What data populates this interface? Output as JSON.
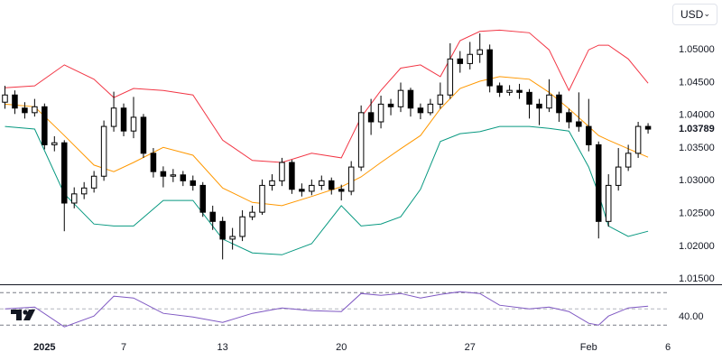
{
  "currency_button": "USD",
  "chart_data": {
    "type": "candlestick",
    "xlim": [
      -0.5,
      67
    ],
    "xticks": [
      {
        "value": 4,
        "label": "2025"
      },
      {
        "value": 12,
        "label": "7"
      },
      {
        "value": 22,
        "label": "13"
      },
      {
        "value": 34,
        "label": "20"
      },
      {
        "value": 47,
        "label": "27"
      },
      {
        "value": 59,
        "label": "Feb"
      },
      {
        "value": 67,
        "label": "6"
      }
    ],
    "ylim": [
      1.0142,
      1.0576
    ],
    "yticks": [
      {
        "value": 1.05,
        "label": "1.05000"
      },
      {
        "value": 1.045,
        "label": "1.04500"
      },
      {
        "value": 1.04,
        "label": "1.04000"
      },
      {
        "value": 1.035,
        "label": "1.03500"
      },
      {
        "value": 1.03,
        "label": "1.03000"
      },
      {
        "value": 1.025,
        "label": "1.02500"
      },
      {
        "value": 1.02,
        "label": "1.02000"
      },
      {
        "value": 1.015,
        "label": "1.01500"
      }
    ],
    "last_value_label": "1.03789",
    "up_color": "#ffffff",
    "down_color": "#000000",
    "open": [
      1.042,
      1.0431,
      1.0411,
      1.0404,
      1.0413,
      1.0355,
      1.0358,
      1.0266,
      1.028,
      1.0289,
      1.0307,
      1.0383,
      1.0411,
      1.0376,
      1.0397,
      1.0342,
      1.0314,
      1.0307,
      1.0309,
      1.03,
      1.0293,
      1.0252,
      1.0238,
      1.0211,
      1.0215,
      1.0245,
      1.0252,
      1.0293,
      1.03,
      1.0328,
      1.0287,
      1.0284,
      1.0293,
      1.03,
      1.0287,
      1.0284,
      1.0321,
      1.0404,
      1.039,
      1.0417,
      1.0413,
      1.0438,
      1.0411,
      1.0404,
      1.0417,
      1.0431,
      1.0486,
      1.0479,
      1.0493,
      1.05,
      1.0445,
      1.0435,
      1.0438,
      1.0435,
      1.0417,
      1.0411,
      1.0431,
      1.0404,
      1.039,
      1.0383,
      1.0355,
      1.0238,
      1.0293,
      1.0321,
      1.0342,
      1.0383
    ],
    "high": [
      1.0445,
      1.0438,
      1.042,
      1.0425,
      1.0418,
      1.0368,
      1.0362,
      1.029,
      1.0298,
      1.0315,
      1.0392,
      1.0436,
      1.0418,
      1.0428,
      1.0402,
      1.035,
      1.0322,
      1.0318,
      1.0315,
      1.0308,
      1.0298,
      1.0262,
      1.0245,
      1.0228,
      1.0255,
      1.0262,
      1.0302,
      1.031,
      1.0335,
      1.0332,
      1.0296,
      1.0302,
      1.0308,
      1.0305,
      1.0294,
      1.033,
      1.0415,
      1.0425,
      1.043,
      1.0425,
      1.045,
      1.0442,
      1.0418,
      1.0425,
      1.045,
      1.051,
      1.0498,
      1.0512,
      1.0525,
      1.0508,
      1.045,
      1.0446,
      1.0448,
      1.044,
      1.0425,
      1.0455,
      1.0436,
      1.041,
      1.0435,
      1.0425,
      1.036,
      1.031,
      1.035,
      1.0355,
      1.039,
      1.0388
    ],
    "low": [
      1.041,
      1.0402,
      1.0395,
      1.0398,
      1.0348,
      1.0345,
      1.0223,
      1.0258,
      1.0272,
      1.0282,
      1.03,
      1.0375,
      1.0368,
      1.0365,
      1.0335,
      1.0305,
      1.029,
      1.0298,
      1.0292,
      1.0285,
      1.0245,
      1.0225,
      1.018,
      1.0195,
      1.0208,
      1.024,
      1.0248,
      1.0285,
      1.0292,
      1.028,
      1.0276,
      1.0278,
      1.0286,
      1.0279,
      1.027,
      1.0278,
      1.0315,
      1.037,
      1.038,
      1.04,
      1.0405,
      1.0398,
      1.0394,
      1.04,
      1.041,
      1.0425,
      1.0465,
      1.047,
      1.048,
      1.0435,
      1.0428,
      1.043,
      1.0425,
      1.0395,
      1.0385,
      1.0405,
      1.039,
      1.038,
      1.0375,
      1.0345,
      1.0212,
      1.023,
      1.0285,
      1.0315,
      1.0335,
      1.0372
    ],
    "close": [
      1.0431,
      1.0411,
      1.0404,
      1.0413,
      1.0355,
      1.0358,
      1.0266,
      1.028,
      1.0289,
      1.0307,
      1.0383,
      1.0411,
      1.0376,
      1.0397,
      1.0342,
      1.0314,
      1.0307,
      1.0309,
      1.03,
      1.0293,
      1.0252,
      1.0238,
      1.0211,
      1.0215,
      1.0245,
      1.0252,
      1.0293,
      1.03,
      1.0328,
      1.0287,
      1.0284,
      1.0293,
      1.03,
      1.0287,
      1.0284,
      1.0321,
      1.0404,
      1.039,
      1.0417,
      1.0413,
      1.0438,
      1.0411,
      1.0404,
      1.0417,
      1.0431,
      1.0486,
      1.0479,
      1.0493,
      1.05,
      1.0445,
      1.0435,
      1.0438,
      1.0435,
      1.0417,
      1.0411,
      1.0431,
      1.0404,
      1.039,
      1.0383,
      1.0355,
      1.0238,
      1.0293,
      1.0321,
      1.0342,
      1.0383,
      1.03789
    ],
    "bands": {
      "x": [
        0,
        3,
        6,
        9,
        11,
        13,
        16,
        19,
        22,
        25,
        28,
        31,
        34,
        36,
        38,
        40,
        42,
        44,
        46,
        48,
        50,
        53,
        55,
        57,
        59,
        60,
        61,
        63,
        65
      ],
      "series": [
        {
          "color": "#f23645",
          "values": [
            1.0442,
            1.0445,
            1.0477,
            1.0455,
            1.0427,
            1.0441,
            1.0438,
            1.0431,
            1.0362,
            1.0331,
            1.0328,
            1.0342,
            1.0335,
            1.0397,
            1.0438,
            1.0472,
            1.0477,
            1.0459,
            1.0514,
            1.0528,
            1.053,
            1.0526,
            1.05,
            1.0438,
            1.05,
            1.0507,
            1.0507,
            1.0486,
            1.0449
          ]
        },
        {
          "color": "#ff9800",
          "values": [
            1.0417,
            1.0413,
            1.0369,
            1.0324,
            1.0314,
            1.0328,
            1.0351,
            1.0339,
            1.0289,
            1.0267,
            1.0262,
            1.0276,
            1.0291,
            1.0306,
            1.0328,
            1.0349,
            1.0369,
            1.041,
            1.0441,
            1.0452,
            1.0459,
            1.0455,
            1.0435,
            1.041,
            1.0383,
            1.0369,
            1.0362,
            1.0349,
            1.0336
          ]
        },
        {
          "color": "#089981",
          "values": [
            1.0383,
            1.0379,
            1.028,
            1.0234,
            1.0231,
            1.0231,
            1.027,
            1.027,
            1.0211,
            1.019,
            1.0187,
            1.0204,
            1.0262,
            1.0231,
            1.0234,
            1.0245,
            1.0287,
            1.036,
            1.0372,
            1.0375,
            1.0383,
            1.0383,
            1.038,
            1.0376,
            1.0321,
            1.028,
            1.0231,
            1.0215,
            1.0223
          ]
        }
      ]
    },
    "rsi": {
      "color": "#7e57c2",
      "ylim": [
        18,
        78
      ],
      "yticks": [
        {
          "value": 40,
          "label": "40.00"
        }
      ],
      "levels": [
        70,
        50,
        30
      ],
      "x": [
        0,
        3,
        6,
        9,
        11,
        13,
        16,
        19,
        22,
        25,
        28,
        31,
        34,
        36,
        38,
        40,
        42,
        44,
        46,
        48,
        50,
        53,
        55,
        57,
        59,
        60,
        61,
        63,
        65
      ],
      "values": [
        50,
        52.2,
        27.8,
        41.1,
        65.6,
        63.3,
        44.4,
        40,
        33.3,
        44.4,
        51.1,
        47.8,
        46.7,
        68.9,
        66.7,
        68.9,
        63.3,
        67.8,
        71.1,
        68.9,
        54.4,
        50,
        52.2,
        46.7,
        32.2,
        30,
        41.1,
        51.1,
        53.3
      ]
    }
  }
}
